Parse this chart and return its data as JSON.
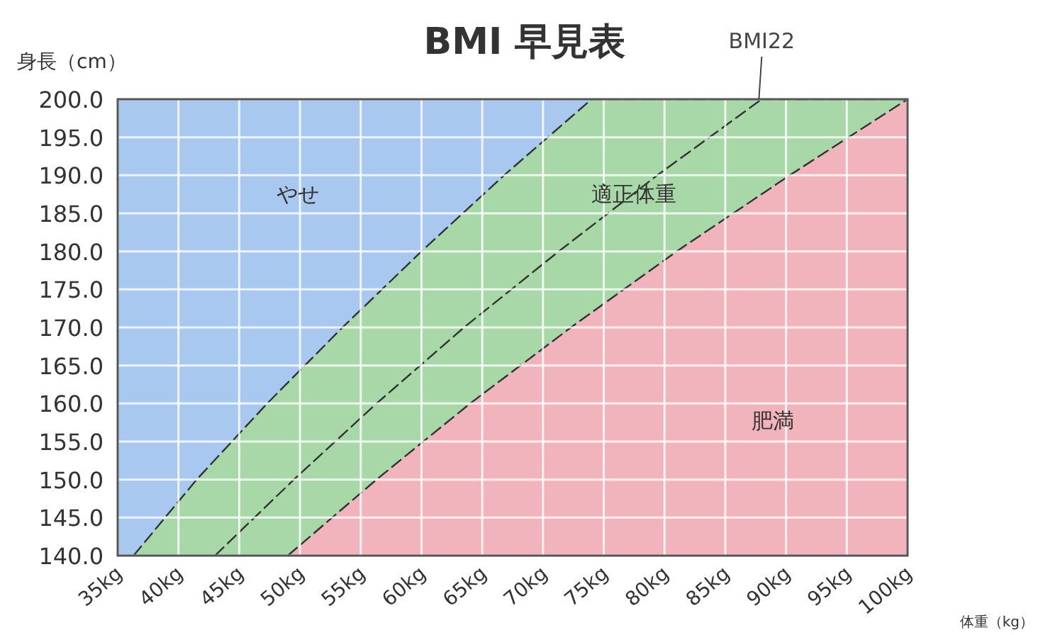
{
  "chart_data": {
    "type": "area",
    "title": "BMI 早見表",
    "ylabel": "身長（cm）",
    "xlabel": "体重（kg）",
    "xlim": [
      35,
      100
    ],
    "ylim": [
      140,
      200
    ],
    "xticks": [
      {
        "value": 35,
        "label": "35kg"
      },
      {
        "value": 40,
        "label": "40kg"
      },
      {
        "value": 45,
        "label": "45kg"
      },
      {
        "value": 50,
        "label": "50kg"
      },
      {
        "value": 55,
        "label": "55kg"
      },
      {
        "value": 60,
        "label": "60kg"
      },
      {
        "value": 65,
        "label": "65kg"
      },
      {
        "value": 70,
        "label": "70kg"
      },
      {
        "value": 75,
        "label": "75kg"
      },
      {
        "value": 80,
        "label": "80kg"
      },
      {
        "value": 85,
        "label": "85kg"
      },
      {
        "value": 90,
        "label": "90kg"
      },
      {
        "value": 95,
        "label": "95kg"
      },
      {
        "value": 100,
        "label": "100kg"
      }
    ],
    "yticks": [
      {
        "value": 140,
        "label": "140.0"
      },
      {
        "value": 145,
        "label": "145.0"
      },
      {
        "value": 150,
        "label": "150.0"
      },
      {
        "value": 155,
        "label": "155.0"
      },
      {
        "value": 160,
        "label": "160.0"
      },
      {
        "value": 165,
        "label": "165.0"
      },
      {
        "value": 170,
        "label": "170.0"
      },
      {
        "value": 175,
        "label": "175.0"
      },
      {
        "value": 180,
        "label": "180.0"
      },
      {
        "value": 185,
        "label": "185.0"
      },
      {
        "value": 190,
        "label": "190.0"
      },
      {
        "value": 195,
        "label": "195.0"
      },
      {
        "value": 200,
        "label": "200.0"
      }
    ],
    "grid": true,
    "line_style": "dashed",
    "bands": [
      {
        "axis": "y",
        "from": 140,
        "to": 200,
        "color": "#a9c8ef"
      }
    ],
    "series": [
      {
        "color": "#a8d8a8",
        "x": [
          36.3,
          41.5,
          47.3,
          53.5,
          60,
          66.8,
          74,
          100
        ],
        "values": [
          140,
          150,
          160,
          170,
          180,
          190,
          200,
          200
        ]
      },
      {
        "color": "#f2b4bc",
        "x": [
          49,
          56.3,
          64,
          72.3,
          81,
          90.3,
          100
        ],
        "values": [
          140,
          150,
          160,
          170,
          180,
          190,
          200
        ]
      },
      {
        "type": "line",
        "color": "#333333",
        "x": [
          43,
          49.5,
          56.3,
          63.5,
          71.3,
          79.4,
          88
        ],
        "values": [
          140,
          150,
          160,
          170,
          180,
          190,
          200
        ]
      }
    ],
    "annotations": [
      {
        "text": "BMI22",
        "x": 88,
        "y": 200
      },
      "やせ",
      "適正体重",
      "肥満"
    ]
  }
}
